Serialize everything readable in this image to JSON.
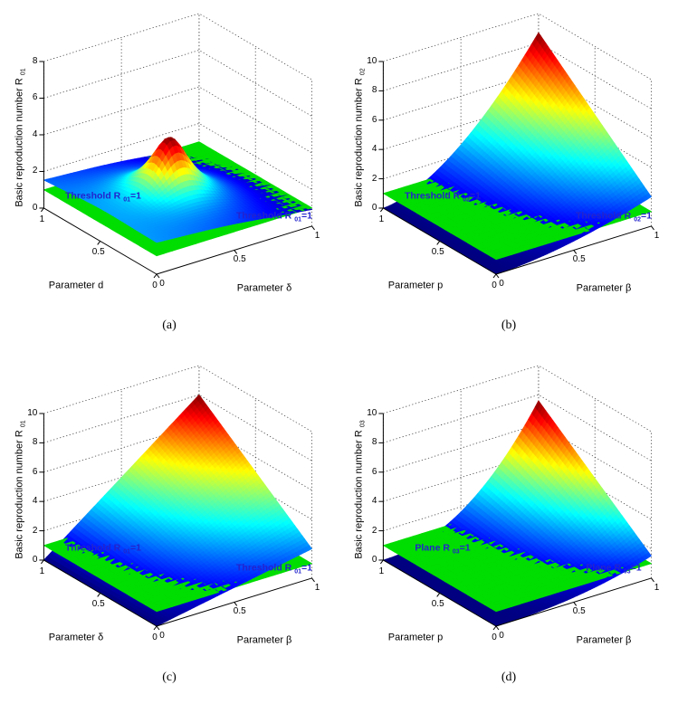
{
  "figure": {
    "background": "#ffffff"
  },
  "style": {
    "plane_color": "#00dd00",
    "annotation_color": "#2323cd",
    "axis_color": "#000000",
    "grid_color": "#4a4a4a",
    "colormap": "jet"
  },
  "chart_data": [
    {
      "id": "a",
      "type": "surface3d",
      "caption": "(a)",
      "xlabel": "Parameter δ",
      "ylabel": "Parameter d",
      "zlabel_pre": "Basic reproduction number R",
      "zlabel_sub": "01",
      "xlim": [
        0,
        1
      ],
      "ylim": [
        0,
        1
      ],
      "zlim": [
        0,
        8
      ],
      "xticks": [
        0,
        0.5,
        1
      ],
      "yticks": [
        0,
        0.5,
        1
      ],
      "zticks": [
        0,
        2,
        4,
        6,
        8
      ],
      "grid": true,
      "threshold_plane": {
        "z": 1,
        "label_pre": "Threshold R",
        "label_sub": "01",
        "label_post": "=1"
      },
      "surface": {
        "kind": "peak",
        "base": [
          1.6,
          -0.8,
          -0.2
        ],
        "amp": 0.5,
        "cx": 0.45,
        "cy": 0.5,
        "k": 8,
        "eps": 0.15,
        "zmin": 0.7,
        "zpeak": 4.5,
        "peak_at": [
          0.45,
          0.5
        ],
        "description": "Gently tilted blue sheet near z=1.7 with sharp red spike at the centre crossing the z=1 plane on the right half",
        "sample_grid": {
          "x": [
            0,
            0.5,
            1
          ],
          "y": [
            0,
            0.5,
            1
          ],
          "z": [
            [
              1.73,
              1.43,
              0.91
            ],
            [
              1.78,
              4.24,
              0.9
            ],
            [
              1.53,
              1.33,
              0.71
            ]
          ]
        }
      }
    },
    {
      "id": "b",
      "type": "surface3d",
      "caption": "(b)",
      "xlabel": "Parameter β",
      "ylabel": "Parameter p",
      "zlabel_pre": "Basic reproduction number R",
      "zlabel_sub": "02",
      "xlim": [
        0,
        1
      ],
      "ylim": [
        0,
        1
      ],
      "zlim": [
        0,
        10
      ],
      "xticks": [
        0,
        0.5,
        1
      ],
      "yticks": [
        0,
        0.5,
        1
      ],
      "zticks": [
        0,
        2,
        4,
        6,
        8,
        10
      ],
      "grid": true,
      "threshold_plane": {
        "z": 1,
        "label_pre": "Threshold R",
        "label_sub": "02",
        "label_post": "=1"
      },
      "surface": {
        "kind": "fan",
        "A": 8.7,
        "p": 1.7,
        "c0": 0.23,
        "c1": 0.77,
        "zmin": 0,
        "zpeak": 8.7,
        "peak_at": [
          1,
          1
        ],
        "description": "Curved fan rising from zero near β=0 (dark navy strip) to a red tip of about 8.7 at β=1, p=1, piercing the z=1 plane",
        "sample_grid": {
          "x": [
            0,
            0.5,
            1
          ],
          "y": [
            0,
            0.5,
            1
          ],
          "z": [
            [
              0,
              0.62,
              2.0
            ],
            [
              0,
              1.65,
              5.35
            ],
            [
              0,
              2.68,
              8.7
            ]
          ]
        }
      }
    },
    {
      "id": "c",
      "type": "surface3d",
      "caption": "(c)",
      "xlabel": "Parameter β",
      "ylabel": "Parameter δ",
      "zlabel_pre": "Basic reproduction number R",
      "zlabel_sub": "01",
      "xlim": [
        0,
        1
      ],
      "ylim": [
        0,
        1
      ],
      "zlim": [
        0,
        10
      ],
      "xticks": [
        0,
        0.5,
        1
      ],
      "yticks": [
        0,
        0.5,
        1
      ],
      "zticks": [
        0,
        2,
        4,
        6,
        8,
        10
      ],
      "grid": true,
      "threshold_plane": {
        "z": 1,
        "label_pre": "Threshold R",
        "label_sub": "01",
        "label_post": "=1"
      },
      "surface": {
        "kind": "fan",
        "A": 8.0,
        "p": 1.0,
        "c0": 0.25,
        "c1": 0.75,
        "zmin": 0,
        "zpeak": 8.0,
        "peak_at": [
          1,
          1
        ],
        "description": "Straight-edged blue wedge rising linearly in β from zero at β=0 to a red tip near 8 at β=1, δ=1, crossing the z=1 plane",
        "sample_grid": {
          "x": [
            0,
            0.5,
            1
          ],
          "y": [
            0,
            0.5,
            1
          ],
          "z": [
            [
              0,
              1.0,
              2.0
            ],
            [
              0,
              2.5,
              5.0
            ],
            [
              0,
              4.0,
              8.0
            ]
          ]
        }
      }
    },
    {
      "id": "d",
      "type": "surface3d",
      "caption": "(d)",
      "xlabel": "Parameter β",
      "ylabel": "Parameter p",
      "zlabel_pre": "Basic reproduction number R",
      "zlabel_sub": "03",
      "xlim": [
        0,
        1
      ],
      "ylim": [
        0,
        1
      ],
      "zlim": [
        0,
        10
      ],
      "xticks": [
        0,
        0.5,
        1
      ],
      "yticks": [
        0,
        0.5,
        1
      ],
      "zticks": [
        0,
        2,
        4,
        6,
        8,
        10
      ],
      "grid": true,
      "threshold_plane": {
        "z": 1,
        "label_pre": "Plane R",
        "label_sub": "03",
        "label_post": "=1"
      },
      "surface": {
        "kind": "fan",
        "A": 7.6,
        "p": 2.2,
        "c0": 0.2,
        "c1": 0.8,
        "zmin": 0,
        "zpeak": 7.6,
        "peak_at": [
          1,
          1
        ],
        "description": "Narrow curved fan, near zero for β<0.4 (dark navy strip along β=0), rising to a thin red tip of about 7.6 at β=1, p=1",
        "sample_grid": {
          "x": [
            0,
            0.5,
            1
          ],
          "y": [
            0,
            0.5,
            1
          ],
          "z": [
            [
              0,
              0.33,
              1.52
            ],
            [
              0,
              0.99,
              4.56
            ],
            [
              0,
              1.65,
              7.6
            ]
          ]
        }
      }
    }
  ]
}
